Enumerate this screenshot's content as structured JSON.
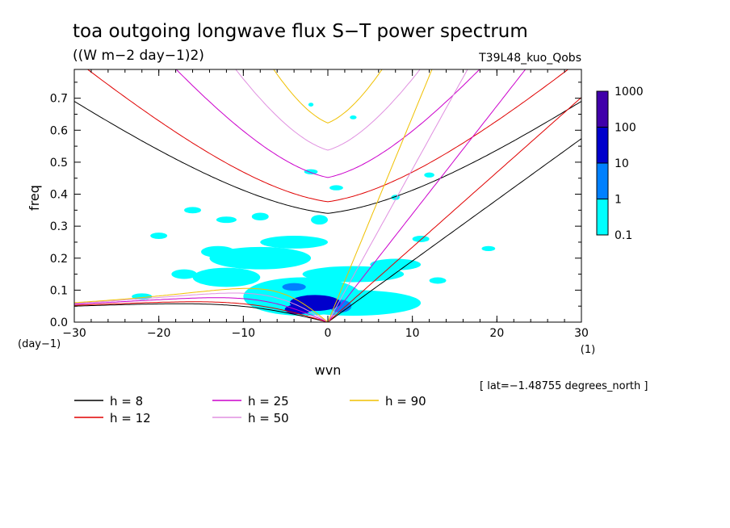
{
  "chart_data": {
    "type": "contour",
    "title": "toa outgoing longwave flux S−T power spectrum",
    "subtitle": "((W m−2 day−1)2)",
    "run_label": "T39L48_kuo_Qobs",
    "xlabel": "wvn",
    "ylabel": "freq",
    "x_unit": "(1)",
    "y_unit": "(day−1)",
    "xlim": [
      -30,
      30
    ],
    "ylim": [
      0,
      0.79
    ],
    "x_ticks": [
      -30,
      -20,
      -10,
      0,
      10,
      20,
      30
    ],
    "x_tick_labels": [
      "−30",
      "−20",
      "−10",
      "0",
      "10",
      "20",
      "30"
    ],
    "y_ticks": [
      0,
      0.1,
      0.2,
      0.3,
      0.4,
      0.5,
      0.6,
      0.7
    ],
    "y_tick_labels": [
      "0.0",
      "0.1",
      "0.2",
      "0.3",
      "0.4",
      "0.5",
      "0.6",
      "0.7"
    ],
    "colorbar": {
      "levels": [
        "0.1",
        "1",
        "10",
        "100",
        "1000"
      ],
      "colors": [
        "#00ffff",
        "#0080ff",
        "#0000cc",
        "#4000aa"
      ]
    },
    "footer_note": "[ lat=−1.48755 degrees_north ]",
    "legend": [
      {
        "label": "h =  8",
        "color": "#000000"
      },
      {
        "label": "h = 12",
        "color": "#e00000"
      },
      {
        "label": "h = 25",
        "color": "#cc00cc"
      },
      {
        "label": "h = 50",
        "color": "#e090e0"
      },
      {
        "label": "h = 90",
        "color": "#f0c000"
      }
    ],
    "dispersion_curves": {
      "equivalent_depths": [
        8,
        12,
        25,
        50,
        90
      ],
      "families": [
        "kelvin",
        "er_n1",
        "eig_n1",
        "mrg"
      ]
    },
    "spectral_blobs": [
      {
        "x": -1.5,
        "y": 0.06,
        "rx": 3.0,
        "ry": 0.025,
        "level": 2
      },
      {
        "x": -3.5,
        "y": 0.04,
        "rx": 1.6,
        "ry": 0.015,
        "level": 2
      },
      {
        "x": 1.5,
        "y": 0.05,
        "rx": 1.3,
        "ry": 0.02,
        "level": 1
      },
      {
        "x": -4.0,
        "y": 0.11,
        "rx": 1.4,
        "ry": 0.012,
        "level": 1
      },
      {
        "x": -3.0,
        "y": 0.08,
        "rx": 7.0,
        "ry": 0.06,
        "level": 0
      },
      {
        "x": 3.0,
        "y": 0.06,
        "rx": 8.0,
        "ry": 0.04,
        "level": 0
      },
      {
        "x": -8.0,
        "y": 0.2,
        "rx": 6.0,
        "ry": 0.035,
        "level": 0
      },
      {
        "x": -4.0,
        "y": 0.25,
        "rx": 4.0,
        "ry": 0.02,
        "level": 0
      },
      {
        "x": -12.0,
        "y": 0.14,
        "rx": 4.0,
        "ry": 0.03,
        "level": 0
      },
      {
        "x": -13.0,
        "y": 0.22,
        "rx": 2.0,
        "ry": 0.018,
        "level": 0
      },
      {
        "x": 3.0,
        "y": 0.15,
        "rx": 6.0,
        "ry": 0.025,
        "level": 0
      },
      {
        "x": 8.0,
        "y": 0.18,
        "rx": 3.0,
        "ry": 0.018,
        "level": 0
      },
      {
        "x": -16.0,
        "y": 0.35,
        "rx": 1.0,
        "ry": 0.01,
        "level": 0
      },
      {
        "x": -12.0,
        "y": 0.32,
        "rx": 1.2,
        "ry": 0.01,
        "level": 0
      },
      {
        "x": -8.0,
        "y": 0.33,
        "rx": 1.0,
        "ry": 0.012,
        "level": 0
      },
      {
        "x": -20.0,
        "y": 0.27,
        "rx": 1.0,
        "ry": 0.01,
        "level": 0
      },
      {
        "x": -17.0,
        "y": 0.15,
        "rx": 1.5,
        "ry": 0.015,
        "level": 0
      },
      {
        "x": -1.0,
        "y": 0.32,
        "rx": 1.0,
        "ry": 0.015,
        "level": 0
      },
      {
        "x": 1.0,
        "y": 0.42,
        "rx": 0.8,
        "ry": 0.008,
        "level": 0
      },
      {
        "x": -2.0,
        "y": 0.47,
        "rx": 0.8,
        "ry": 0.008,
        "level": 0
      },
      {
        "x": 3.0,
        "y": 0.64,
        "rx": 0.4,
        "ry": 0.006,
        "level": 0
      },
      {
        "x": -2.0,
        "y": 0.68,
        "rx": 0.3,
        "ry": 0.006,
        "level": 0
      },
      {
        "x": 12.0,
        "y": 0.46,
        "rx": 0.6,
        "ry": 0.008,
        "level": 0
      },
      {
        "x": 8.0,
        "y": 0.39,
        "rx": 0.5,
        "ry": 0.008,
        "level": 0
      },
      {
        "x": 11.0,
        "y": 0.26,
        "rx": 1.0,
        "ry": 0.01,
        "level": 0
      },
      {
        "x": 13.0,
        "y": 0.13,
        "rx": 1.0,
        "ry": 0.01,
        "level": 0
      },
      {
        "x": 19.0,
        "y": 0.23,
        "rx": 0.8,
        "ry": 0.008,
        "level": 0
      },
      {
        "x": -22.0,
        "y": 0.08,
        "rx": 1.2,
        "ry": 0.01,
        "level": 0
      }
    ]
  }
}
